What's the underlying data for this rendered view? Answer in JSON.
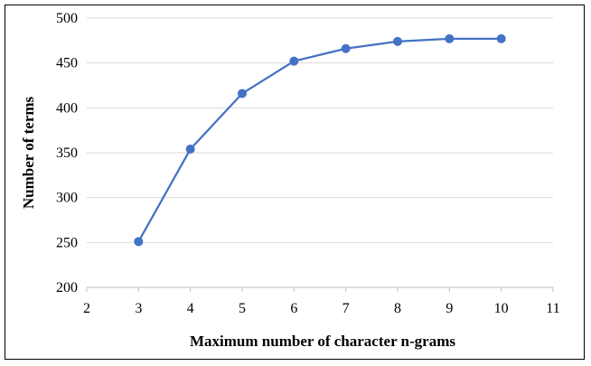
{
  "chart_data": {
    "type": "line",
    "title": "",
    "xlabel": "Maximum number of character n-grams",
    "ylabel": "Number of terms",
    "x": [
      3,
      4,
      5,
      6,
      7,
      8,
      9,
      10
    ],
    "series": [
      {
        "values": [
          251,
          354,
          416,
          452,
          466,
          474,
          477,
          477
        ]
      }
    ],
    "xlim": [
      2,
      11
    ],
    "ylim": [
      200,
      500
    ],
    "x_ticks": [
      2,
      3,
      4,
      5,
      6,
      7,
      8,
      9,
      10,
      11
    ],
    "y_ticks": [
      200,
      250,
      300,
      350,
      400,
      450,
      500
    ],
    "grid": "horizontal",
    "legend": "none",
    "colors": {
      "series": "#4472C4",
      "grid": "#d9d9d9",
      "axis": "#bfbfbf"
    }
  }
}
